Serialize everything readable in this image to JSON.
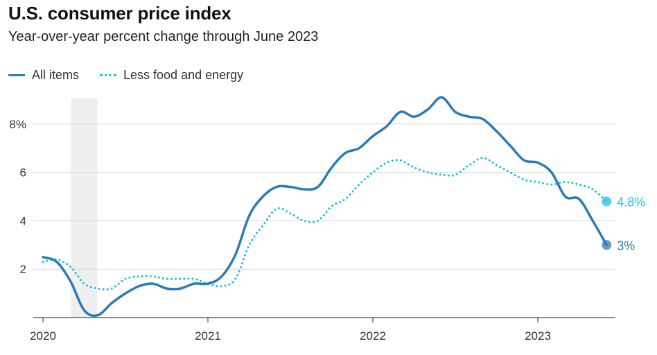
{
  "title": "U.S. consumer price index",
  "subtitle": "Year-over-year percent change through June 2023",
  "colors": {
    "all_items": "#2b7bb9",
    "core": "#1ec0e0",
    "grid": "#d9d9d9",
    "recession": "#efefef"
  },
  "chart_data": {
    "type": "line",
    "title": "U.S. consumer price index",
    "subtitle": "Year-over-year percent change through June 2023",
    "xlabel": "",
    "ylabel": "",
    "x_unit": "year",
    "xlim": [
      2020.0,
      2023.5
    ],
    "ylim": [
      0,
      9
    ],
    "yticks": [
      {
        "value": 2,
        "label": "2"
      },
      {
        "value": 4,
        "label": "4"
      },
      {
        "value": 6,
        "label": "6"
      },
      {
        "value": 8,
        "label": "8%"
      }
    ],
    "xticks": [
      {
        "value": 2020,
        "label": "2020"
      },
      {
        "value": 2021,
        "label": "2021"
      },
      {
        "value": 2022,
        "label": "2022"
      },
      {
        "value": 2023,
        "label": "2023"
      }
    ],
    "shaded_period": [
      2020.17,
      2020.33
    ],
    "legend": [
      "All items",
      "Less food and energy"
    ],
    "series": [
      {
        "name": "All items",
        "style": "solid",
        "end_label": "3%",
        "points": [
          [
            2020.0,
            2.5
          ],
          [
            2020.083,
            2.3
          ],
          [
            2020.167,
            1.5
          ],
          [
            2020.25,
            0.3
          ],
          [
            2020.333,
            0.1
          ],
          [
            2020.417,
            0.6
          ],
          [
            2020.5,
            1.0
          ],
          [
            2020.583,
            1.3
          ],
          [
            2020.667,
            1.4
          ],
          [
            2020.75,
            1.2
          ],
          [
            2020.833,
            1.2
          ],
          [
            2020.917,
            1.4
          ],
          [
            2021.0,
            1.4
          ],
          [
            2021.083,
            1.7
          ],
          [
            2021.167,
            2.6
          ],
          [
            2021.25,
            4.2
          ],
          [
            2021.333,
            5.0
          ],
          [
            2021.417,
            5.4
          ],
          [
            2021.5,
            5.4
          ],
          [
            2021.583,
            5.3
          ],
          [
            2021.667,
            5.4
          ],
          [
            2021.75,
            6.2
          ],
          [
            2021.833,
            6.8
          ],
          [
            2021.917,
            7.0
          ],
          [
            2022.0,
            7.5
          ],
          [
            2022.083,
            7.9
          ],
          [
            2022.167,
            8.5
          ],
          [
            2022.25,
            8.3
          ],
          [
            2022.333,
            8.6
          ],
          [
            2022.417,
            9.1
          ],
          [
            2022.5,
            8.5
          ],
          [
            2022.583,
            8.3
          ],
          [
            2022.667,
            8.2
          ],
          [
            2022.75,
            7.7
          ],
          [
            2022.833,
            7.1
          ],
          [
            2022.917,
            6.5
          ],
          [
            2023.0,
            6.4
          ],
          [
            2023.083,
            6.0
          ],
          [
            2023.167,
            5.0
          ],
          [
            2023.25,
            4.9
          ],
          [
            2023.333,
            4.0
          ],
          [
            2023.417,
            3.0
          ]
        ]
      },
      {
        "name": "Less food and energy",
        "style": "dotted",
        "end_label": "4.8%",
        "points": [
          [
            2020.0,
            2.3
          ],
          [
            2020.083,
            2.4
          ],
          [
            2020.167,
            2.1
          ],
          [
            2020.25,
            1.4
          ],
          [
            2020.333,
            1.2
          ],
          [
            2020.417,
            1.2
          ],
          [
            2020.5,
            1.6
          ],
          [
            2020.583,
            1.7
          ],
          [
            2020.667,
            1.7
          ],
          [
            2020.75,
            1.6
          ],
          [
            2020.833,
            1.6
          ],
          [
            2020.917,
            1.6
          ],
          [
            2021.0,
            1.4
          ],
          [
            2021.083,
            1.3
          ],
          [
            2021.167,
            1.6
          ],
          [
            2021.25,
            3.0
          ],
          [
            2021.333,
            3.8
          ],
          [
            2021.417,
            4.5
          ],
          [
            2021.5,
            4.3
          ],
          [
            2021.583,
            4.0
          ],
          [
            2021.667,
            4.0
          ],
          [
            2021.75,
            4.6
          ],
          [
            2021.833,
            4.9
          ],
          [
            2021.917,
            5.5
          ],
          [
            2022.0,
            6.0
          ],
          [
            2022.083,
            6.4
          ],
          [
            2022.167,
            6.5
          ],
          [
            2022.25,
            6.2
          ],
          [
            2022.333,
            6.0
          ],
          [
            2022.417,
            5.9
          ],
          [
            2022.5,
            5.9
          ],
          [
            2022.583,
            6.3
          ],
          [
            2022.667,
            6.6
          ],
          [
            2022.75,
            6.3
          ],
          [
            2022.833,
            6.0
          ],
          [
            2022.917,
            5.7
          ],
          [
            2023.0,
            5.6
          ],
          [
            2023.083,
            5.5
          ],
          [
            2023.167,
            5.6
          ],
          [
            2023.25,
            5.5
          ],
          [
            2023.333,
            5.3
          ],
          [
            2023.417,
            4.8
          ]
        ]
      }
    ]
  }
}
